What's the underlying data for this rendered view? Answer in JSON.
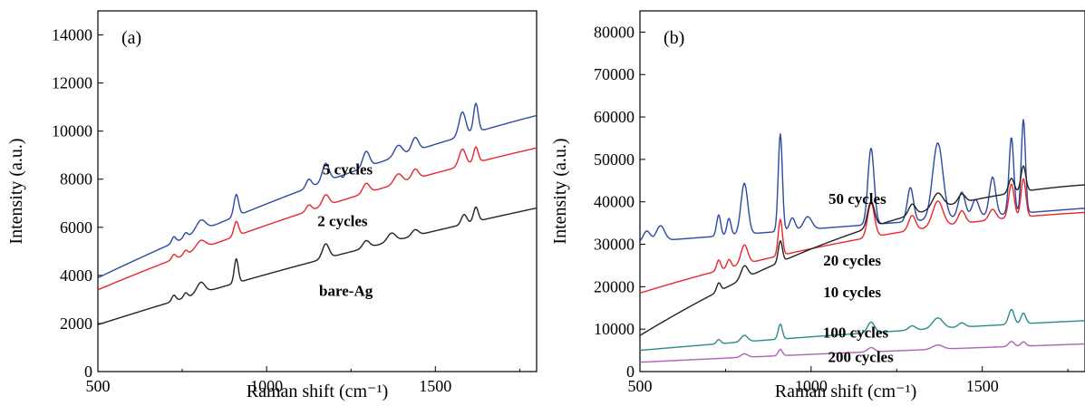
{
  "chart_data": [
    {
      "type": "line",
      "panel_label": "(a)",
      "xlabel": "Raman shift (cm⁻¹)",
      "ylabel": "Intensity (a.u.)",
      "xlim": [
        500,
        1800
      ],
      "ylim": [
        0,
        15000
      ],
      "xticks": [
        500,
        1000,
        1500
      ],
      "yticks": [
        0,
        2000,
        4000,
        6000,
        8000,
        10000,
        12000,
        14000
      ],
      "series": [
        {
          "name": "5 cycles",
          "color": "#2b4aa0",
          "base_start": 3900,
          "base_end": 10650,
          "curvature": 0.3,
          "peaks": [
            [
              725,
              250,
              6
            ],
            [
              760,
              200,
              6
            ],
            [
              805,
              450,
              14
            ],
            [
              910,
              900,
              7
            ],
            [
              1125,
              350,
              8
            ],
            [
              1175,
              750,
              10
            ],
            [
              1295,
              650,
              10
            ],
            [
              1390,
              450,
              12
            ],
            [
              1440,
              550,
              10
            ],
            [
              1580,
              1000,
              10
            ],
            [
              1620,
              1200,
              7
            ]
          ]
        },
        {
          "name": "2 cycles",
          "color": "#e8262b",
          "base_start": 3400,
          "base_end": 9300,
          "curvature": 0.3,
          "peaks": [
            [
              725,
              200,
              6
            ],
            [
              760,
              180,
              6
            ],
            [
              805,
              350,
              14
            ],
            [
              910,
              600,
              7
            ],
            [
              1125,
              250,
              8
            ],
            [
              1175,
              450,
              10
            ],
            [
              1295,
              400,
              10
            ],
            [
              1390,
              400,
              12
            ],
            [
              1440,
              400,
              10
            ],
            [
              1580,
              700,
              10
            ],
            [
              1620,
              650,
              7
            ]
          ]
        },
        {
          "name": "bare-Ag",
          "color": "#222222",
          "base_start": 1950,
          "base_end": 6800,
          "curvature": 0.2,
          "peaks": [
            [
              725,
              250,
              6
            ],
            [
              760,
              200,
              6
            ],
            [
              805,
              450,
              12
            ],
            [
              910,
              1000,
              6
            ],
            [
              1175,
              600,
              10
            ],
            [
              1295,
              300,
              10
            ],
            [
              1370,
              350,
              12
            ],
            [
              1440,
              250,
              10
            ],
            [
              1585,
              400,
              8
            ],
            [
              1620,
              600,
              7
            ]
          ]
        }
      ],
      "labels": [
        {
          "text": "5 cycles",
          "x": 1240,
          "y": 8200
        },
        {
          "text": "2 cycles",
          "x": 1225,
          "y": 6050
        },
        {
          "text": "bare-Ag",
          "x": 1235,
          "y": 3150
        }
      ]
    },
    {
      "type": "line",
      "panel_label": "(b)",
      "xlabel": "Raman shift (cm⁻¹)",
      "ylabel": "Intensity (a.u.)",
      "xlim": [
        500,
        1800
      ],
      "ylim": [
        0,
        85000
      ],
      "xticks": [
        500,
        1000,
        1500
      ],
      "yticks": [
        0,
        10000,
        20000,
        30000,
        40000,
        50000,
        60000,
        70000,
        80000
      ],
      "series": [
        {
          "name": "50 cycles",
          "color": "#2b4aa0",
          "base_start": 30500,
          "base_end": 38500,
          "curvature": 0,
          "peaks": [
            [
              520,
              2500,
              10
            ],
            [
              560,
              3500,
              12
            ],
            [
              730,
              5000,
              6
            ],
            [
              760,
              4000,
              6
            ],
            [
              805,
              12000,
              10
            ],
            [
              910,
              23000,
              6
            ],
            [
              945,
              3000,
              8
            ],
            [
              990,
              3000,
              12
            ],
            [
              1175,
              18000,
              9
            ],
            [
              1290,
              8000,
              9
            ],
            [
              1370,
              18000,
              15
            ],
            [
              1440,
              6000,
              10
            ],
            [
              1480,
              4000,
              10
            ],
            [
              1530,
              9000,
              9
            ],
            [
              1585,
              18000,
              7
            ],
            [
              1620,
              22000,
              6
            ]
          ]
        },
        {
          "name": "20 cycles",
          "color": "#e8262b",
          "base_start": 18500,
          "base_end": 37500,
          "curvature": 0.7,
          "peaks": [
            [
              730,
              2500,
              6
            ],
            [
              760,
              2000,
              6
            ],
            [
              805,
              4500,
              10
            ],
            [
              910,
              8500,
              6
            ],
            [
              1175,
              8000,
              10
            ],
            [
              1295,
              3500,
              10
            ],
            [
              1370,
              6000,
              15
            ],
            [
              1440,
              3000,
              10
            ],
            [
              1530,
              2500,
              10
            ],
            [
              1585,
              8000,
              8
            ],
            [
              1620,
              9000,
              7
            ]
          ]
        },
        {
          "name": "10 cycles",
          "color": "#222222",
          "base_start": 8500,
          "base_end": 44000,
          "curvature": 0.8,
          "peaks": [
            [
              730,
              2000,
              6
            ],
            [
              805,
              3000,
              10
            ],
            [
              910,
              5000,
              6
            ],
            [
              1175,
              6000,
              10
            ],
            [
              1295,
              2500,
              10
            ],
            [
              1370,
              3500,
              15
            ],
            [
              1440,
              2000,
              10
            ],
            [
              1585,
              3500,
              8
            ],
            [
              1620,
              6000,
              7
            ]
          ]
        },
        {
          "name": "100 cycles",
          "color": "#2a8c86",
          "base_start": 5000,
          "base_end": 12000,
          "curvature": 0.3,
          "peaks": [
            [
              730,
              1000,
              6
            ],
            [
              805,
              1500,
              10
            ],
            [
              910,
              3500,
              6
            ],
            [
              1175,
              2500,
              10
            ],
            [
              1295,
              1000,
              10
            ],
            [
              1370,
              2500,
              15
            ],
            [
              1440,
              1000,
              10
            ],
            [
              1585,
              3500,
              8
            ],
            [
              1620,
              2500,
              7
            ]
          ]
        },
        {
          "name": "200 cycles",
          "color": "#b060b8",
          "base_start": 2200,
          "base_end": 6500,
          "curvature": 0.2,
          "peaks": [
            [
              805,
              800,
              10
            ],
            [
              910,
              1500,
              6
            ],
            [
              1175,
              1000,
              10
            ],
            [
              1370,
              1000,
              15
            ],
            [
              1585,
              1200,
              8
            ],
            [
              1620,
              1000,
              7
            ]
          ]
        }
      ],
      "labels": [
        {
          "text": "50 cycles",
          "x": 1135,
          "y": 39500
        },
        {
          "text": "20 cycles",
          "x": 1120,
          "y": 25000
        },
        {
          "text": "10 cycles",
          "x": 1120,
          "y": 17500
        },
        {
          "text": "100 cycles",
          "x": 1130,
          "y": 8000
        },
        {
          "text": "200 cycles",
          "x": 1145,
          "y": 2200
        }
      ]
    }
  ]
}
